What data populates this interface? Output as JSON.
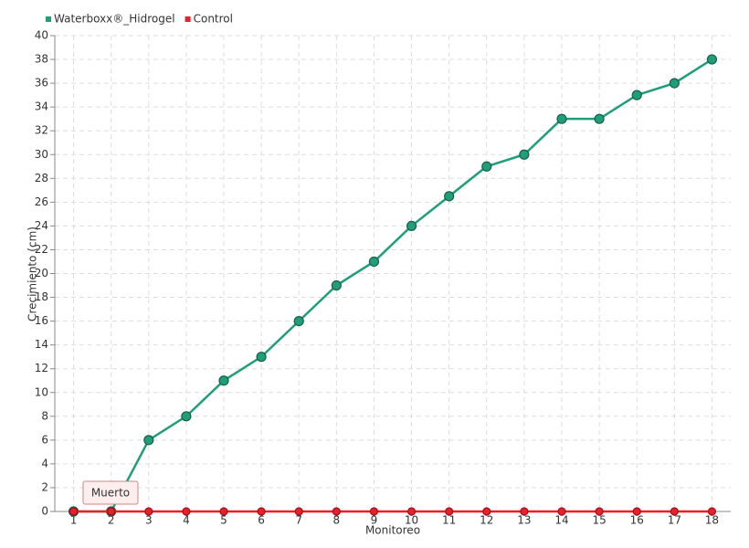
{
  "chart_data": {
    "type": "line",
    "x_label": "Monitoreo",
    "y_label": "Crecimiento (cm)",
    "categories": [
      "1",
      "2",
      "3",
      "4",
      "5",
      "6",
      "7",
      "8",
      "9",
      "10",
      "11",
      "12",
      "13",
      "14",
      "15",
      "16",
      "17",
      "18"
    ],
    "series": [
      {
        "name": "Waterboxx®_Hidrogel",
        "color": "#1f9e7a",
        "values": [
          0,
          0,
          6,
          8,
          11,
          13,
          16,
          19,
          21,
          24,
          26.5,
          29,
          30,
          33,
          33,
          35,
          36,
          38
        ]
      },
      {
        "name": "Control",
        "color": "#e8202a",
        "values": [
          0,
          0,
          0,
          0,
          0,
          0,
          0,
          0,
          0,
          0,
          0,
          0,
          0,
          0,
          0,
          0,
          0,
          0
        ]
      }
    ],
    "annotation": "Muerto",
    "ylim": [
      0,
      40
    ],
    "yticks": [
      0,
      2,
      4,
      6,
      8,
      10,
      12,
      14,
      16,
      18,
      20,
      22,
      24,
      26,
      28,
      30,
      32,
      34,
      36,
      38,
      40
    ],
    "grid": true,
    "legend": "top-left"
  }
}
